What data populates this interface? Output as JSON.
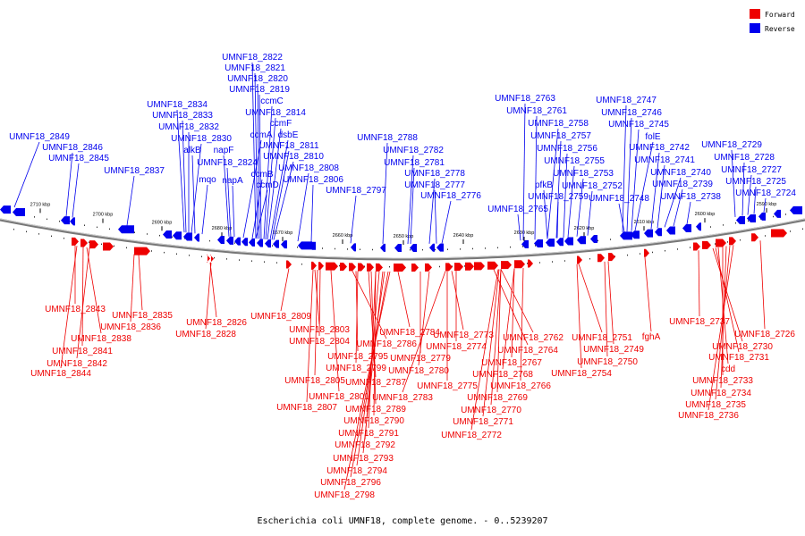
{
  "caption": "Escherichia coli UMNF18, complete genome. - 0..5239207",
  "legend": [
    {
      "label": "Forward",
      "color": "#ee0000"
    },
    {
      "label": "Reverse",
      "color": "#0000ee"
    }
  ],
  "colors": {
    "forward": "#ee0000",
    "reverse": "#0000ee",
    "backbone": "#888888"
  },
  "ticks": [
    "2710 kbp",
    "2700 kbp",
    "2690 kbp",
    "2680 kbp",
    "2670 kbp",
    "2660 kbp",
    "2650 kbp",
    "2640 kbp",
    "2630 kbp",
    "2620 kbp",
    "2610 kbp",
    "2600 kbp",
    "2590 kbp"
  ],
  "reverse_labels": [
    "UMNF18_2822",
    "UMNF18_2821",
    "UMNF18_2820",
    "UMNF18_2819",
    "ccmC",
    "UMNF18_2834",
    "UMNF18_2814",
    "UMNF18_2833",
    "ccmF",
    "UMNF18_2832",
    "ccmA",
    "dsbE",
    "UMNF18_2849",
    "UMNF18_2830",
    "UMNF18_2811",
    "UMNF18_2846",
    "alkB",
    "napF",
    "UMNF18_2810",
    "UMNF18_2845",
    "UMNF18_2824",
    "UMNF18_2808",
    "ccmB",
    "UMNF18_2837",
    "mqo",
    "napA",
    "UMNF18_2806",
    "ccmD",
    "UMNF18_2797",
    "UMNF18_2788",
    "UMNF18_2782",
    "UMNF18_2781",
    "UMNF18_2778",
    "UMNF18_2777",
    "UMNF18_2776",
    "UMNF18_2763",
    "UMNF18_2761",
    "UMNF18_2758",
    "UMNF18_2757",
    "UMNF18_2756",
    "UMNF18_2755",
    "UMNF18_2753",
    "pfkB",
    "UMNF18_2759",
    "UMNF18_2752",
    "UMNF18_2765",
    "UMNF18_2747",
    "UMNF18_2746",
    "UMNF18_2745",
    "folE",
    "UMNF18_2742",
    "UMNF18_2741",
    "UMNF18_2740",
    "UMNF18_2748",
    "UMNF18_2739",
    "UMNF18_2738",
    "UMNF18_2729",
    "UMNF18_2728",
    "UMNF18_2727",
    "UMNF18_2725",
    "UMNF18_2724"
  ],
  "forward_labels": [
    "UMNF18_2843",
    "UMNF18_2835",
    "UMNF18_2836",
    "UMNF18_2838",
    "UMNF18_2841",
    "UMNF18_2842",
    "UMNF18_2844",
    "UMNF18_2826",
    "UMNF18_2828",
    "UMNF18_2809",
    "UMNF18_2803",
    "UMNF18_2804",
    "UMNF18_2786",
    "UMNF18_2795",
    "UMNF18_2799",
    "UMNF18_2805",
    "UMNF18_2801",
    "UMNF18_2807",
    "UMNF18_2787",
    "UMNF18_2789",
    "UMNF18_2790",
    "UMNF18_2791",
    "UMNF18_2792",
    "UMNF18_2793",
    "UMNF18_2794",
    "UMNF18_2796",
    "UMNF18_2798",
    "UMNF18_2784",
    "UMNF18_2779",
    "UMNF18_2780",
    "UMNF18_2783",
    "UMNF18_2773",
    "UMNF18_2774",
    "UMNF18_2775",
    "UMNF18_2762",
    "UMNF18_2764",
    "UMNF18_2767",
    "UMNF18_2768",
    "UMNF18_2766",
    "UMNF18_2769",
    "UMNF18_2770",
    "UMNF18_2771",
    "UMNF18_2772",
    "UMNF18_2751",
    "UMNF18_2749",
    "UMNF18_2750",
    "UMNF18_2754",
    "fghA",
    "UMNF18_2737",
    "UMNF18_2726",
    "UMNF18_2730",
    "UMNF18_2731",
    "cdd",
    "UMNF18_2733",
    "UMNF18_2734",
    "UMNF18_2735",
    "UMNF18_2736"
  ]
}
